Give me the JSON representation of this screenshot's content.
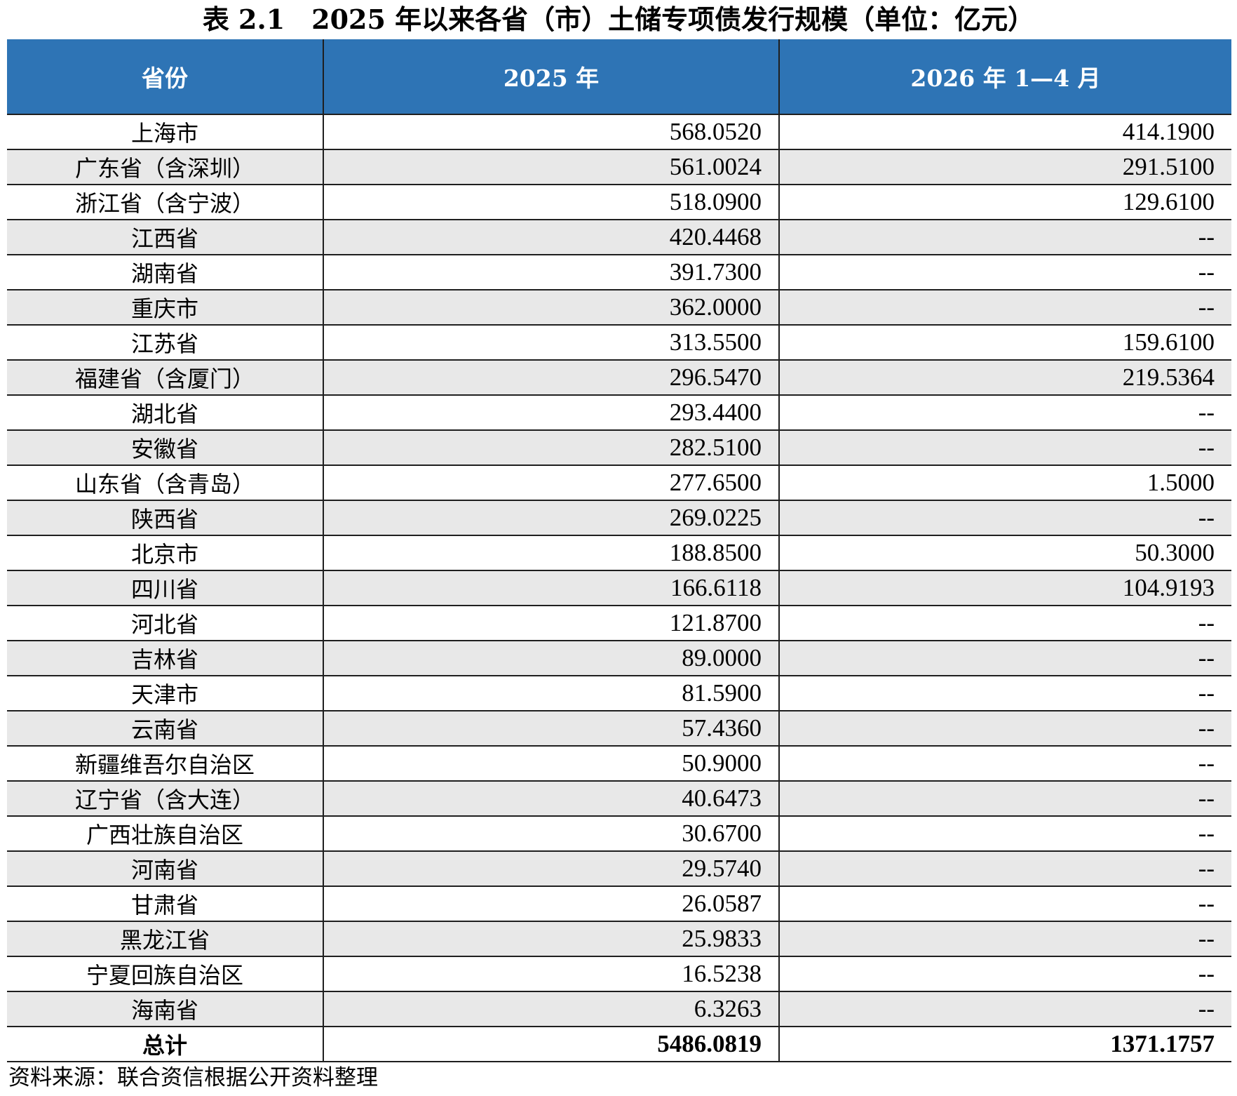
{
  "title": "表 2.1　2025 年以来各省（市）土储专项债发行规模（单位：亿元）",
  "table": {
    "headers": [
      "省份",
      "2025 年",
      "2026 年 1—4 月"
    ],
    "rows": [
      {
        "province": "上海市",
        "y2025": "568.0520",
        "y2026": "414.1900"
      },
      {
        "province": "广东省（含深圳）",
        "y2025": "561.0024",
        "y2026": "291.5100"
      },
      {
        "province": "浙江省（含宁波）",
        "y2025": "518.0900",
        "y2026": "129.6100"
      },
      {
        "province": "江西省",
        "y2025": "420.4468",
        "y2026": "--"
      },
      {
        "province": "湖南省",
        "y2025": "391.7300",
        "y2026": "--"
      },
      {
        "province": "重庆市",
        "y2025": "362.0000",
        "y2026": "--"
      },
      {
        "province": "江苏省",
        "y2025": "313.5500",
        "y2026": "159.6100"
      },
      {
        "province": "福建省（含厦门）",
        "y2025": "296.5470",
        "y2026": "219.5364"
      },
      {
        "province": "湖北省",
        "y2025": "293.4400",
        "y2026": "--"
      },
      {
        "province": "安徽省",
        "y2025": "282.5100",
        "y2026": "--"
      },
      {
        "province": "山东省（含青岛）",
        "y2025": "277.6500",
        "y2026": "1.5000"
      },
      {
        "province": "陕西省",
        "y2025": "269.0225",
        "y2026": "--"
      },
      {
        "province": "北京市",
        "y2025": "188.8500",
        "y2026": "50.3000"
      },
      {
        "province": "四川省",
        "y2025": "166.6118",
        "y2026": "104.9193"
      },
      {
        "province": "河北省",
        "y2025": "121.8700",
        "y2026": "--"
      },
      {
        "province": "吉林省",
        "y2025": "89.0000",
        "y2026": "--"
      },
      {
        "province": "天津市",
        "y2025": "81.5900",
        "y2026": "--"
      },
      {
        "province": "云南省",
        "y2025": "57.4360",
        "y2026": "--"
      },
      {
        "province": "新疆维吾尔自治区",
        "y2025": "50.9000",
        "y2026": "--"
      },
      {
        "province": "辽宁省（含大连）",
        "y2025": "40.6473",
        "y2026": "--"
      },
      {
        "province": "广西壮族自治区",
        "y2025": "30.6700",
        "y2026": "--"
      },
      {
        "province": "河南省",
        "y2025": "29.5740",
        "y2026": "--"
      },
      {
        "province": "甘肃省",
        "y2025": "26.0587",
        "y2026": "--"
      },
      {
        "province": "黑龙江省",
        "y2025": "25.9833",
        "y2026": "--"
      },
      {
        "province": "宁夏回族自治区",
        "y2025": "16.5238",
        "y2026": "--"
      },
      {
        "province": "海南省",
        "y2025": "6.3263",
        "y2026": "--"
      }
    ],
    "total": {
      "label": "总计",
      "y2025": "5486.0819",
      "y2026": "1371.1757"
    }
  },
  "source": "资料来源：联合资信根据公开资料整理",
  "colors": {
    "header_bg": "#2e74b5",
    "alt_row_bg": "#e8e8e8"
  }
}
